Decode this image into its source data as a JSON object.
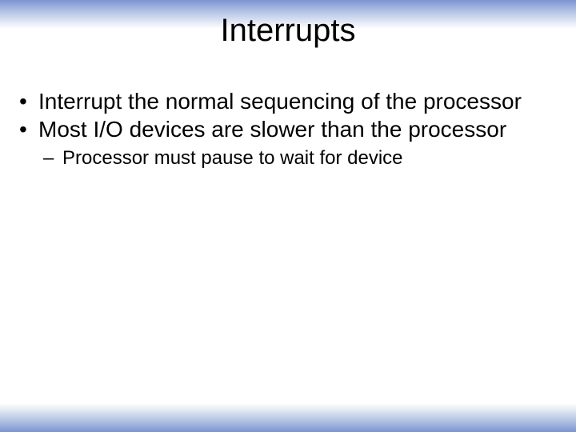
{
  "slide": {
    "title": "Interrupts",
    "title_fontsize": 40,
    "title_color": "#000000",
    "background_color": "#ffffff",
    "gradient_color_start": "#7a95d0",
    "gradient_color_end": "#ffffff",
    "bullets": [
      {
        "text": "Interrupt the normal sequencing of the processor",
        "fontsize": 28
      },
      {
        "text": "Most I/O devices are slower than the processor",
        "fontsize": 28
      }
    ],
    "sub_bullets": [
      {
        "text": "Processor must pause to wait for device",
        "fontsize": 24
      }
    ]
  }
}
